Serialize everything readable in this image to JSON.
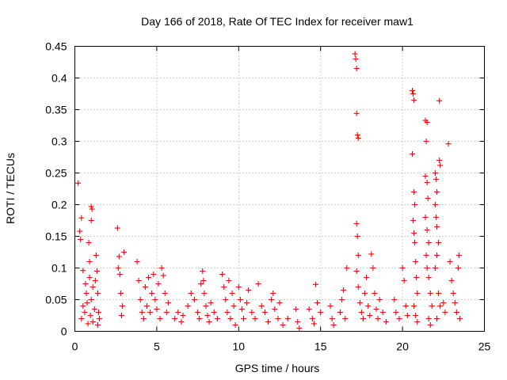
{
  "chart_data": {
    "type": "scatter",
    "title": "Day 166 of 2018, Rate Of TEC Index for receiver maw1",
    "xlabel": "GPS time / hours",
    "ylabel": "ROTI / TECUs",
    "xlim": [
      0,
      25
    ],
    "ylim": [
      0,
      0.45
    ],
    "xticks": [
      0,
      5,
      10,
      15,
      20,
      25
    ],
    "xtick_labels": [
      "0",
      "5",
      "10",
      "15",
      "20",
      "25"
    ],
    "yticks": [
      0,
      0.05,
      0.1,
      0.15,
      0.2,
      0.25,
      0.3,
      0.35,
      0.4,
      0.45
    ],
    "ytick_labels": [
      "0",
      "0.05",
      "0.1",
      "0.15",
      "0.2",
      "0.25",
      "0.3",
      "0.35",
      "0.4",
      "0.45"
    ],
    "grid": true,
    "marker": "+",
    "color": "#ff0000",
    "series": [
      {
        "name": "ROTI",
        "points": [
          [
            0.2,
            0.234
          ],
          [
            0.3,
            0.158
          ],
          [
            0.35,
            0.145
          ],
          [
            0.4,
            0.179
          ],
          [
            0.5,
            0.096
          ],
          [
            0.5,
            0.04
          ],
          [
            0.4,
            0.02
          ],
          [
            0.6,
            0.03
          ],
          [
            0.7,
            0.06
          ],
          [
            0.8,
            0.012
          ],
          [
            0.9,
            0.11
          ],
          [
            0.9,
            0.085
          ],
          [
            1.0,
            0.197
          ],
          [
            1.0,
            0.175
          ],
          [
            1.05,
            0.193
          ],
          [
            1.1,
            0.07
          ],
          [
            1.0,
            0.05
          ],
          [
            1.2,
            0.035
          ],
          [
            0.95,
            0.025
          ],
          [
            1.1,
            0.015
          ],
          [
            1.3,
            0.12
          ],
          [
            1.35,
            0.095
          ],
          [
            1.4,
            0.06
          ],
          [
            1.45,
            0.03
          ],
          [
            1.5,
            0.02
          ],
          [
            1.4,
            0.01
          ],
          [
            0.75,
            0.045
          ],
          [
            0.65,
            0.075
          ],
          [
            1.25,
            0.08
          ],
          [
            0.85,
            0.14
          ],
          [
            2.6,
            0.163
          ],
          [
            2.7,
            0.118
          ],
          [
            2.75,
            0.09
          ],
          [
            2.8,
            0.06
          ],
          [
            2.9,
            0.04
          ],
          [
            3.0,
            0.125
          ],
          [
            2.85,
            0.025
          ],
          [
            2.65,
            0.1
          ],
          [
            3.8,
            0.11
          ],
          [
            3.9,
            0.08
          ],
          [
            4.0,
            0.05
          ],
          [
            4.1,
            0.03
          ],
          [
            4.2,
            0.02
          ],
          [
            4.3,
            0.07
          ],
          [
            4.4,
            0.04
          ],
          [
            4.5,
            0.085
          ],
          [
            4.6,
            0.03
          ],
          [
            4.7,
            0.06
          ],
          [
            4.8,
            0.09
          ],
          [
            4.9,
            0.05
          ],
          [
            5.0,
            0.035
          ],
          [
            5.1,
            0.075
          ],
          [
            5.2,
            0.02
          ],
          [
            5.3,
            0.1
          ],
          [
            5.4,
            0.088
          ],
          [
            5.5,
            0.06
          ],
          [
            5.6,
            0.03
          ],
          [
            5.7,
            0.045
          ],
          [
            6.1,
            0.02
          ],
          [
            6.3,
            0.03
          ],
          [
            6.5,
            0.015
          ],
          [
            6.6,
            0.025
          ],
          [
            6.9,
            0.04
          ],
          [
            7.1,
            0.06
          ],
          [
            7.3,
            0.05
          ],
          [
            7.5,
            0.03
          ],
          [
            7.6,
            0.02
          ],
          [
            7.7,
            0.075
          ],
          [
            7.8,
            0.095
          ],
          [
            7.85,
            0.08
          ],
          [
            7.9,
            0.06
          ],
          [
            8.0,
            0.04
          ],
          [
            8.1,
            0.025
          ],
          [
            8.2,
            0.015
          ],
          [
            8.3,
            0.045
          ],
          [
            8.5,
            0.03
          ],
          [
            8.7,
            0.02
          ],
          [
            9.0,
            0.09
          ],
          [
            9.1,
            0.07
          ],
          [
            9.2,
            0.05
          ],
          [
            9.3,
            0.03
          ],
          [
            9.4,
            0.08
          ],
          [
            9.5,
            0.02
          ],
          [
            9.6,
            0.06
          ],
          [
            9.7,
            0.04
          ],
          [
            9.8,
            0.01
          ],
          [
            10.0,
            0.07
          ],
          [
            10.1,
            0.05
          ],
          [
            10.2,
            0.035
          ],
          [
            10.3,
            0.02
          ],
          [
            10.5,
            0.045
          ],
          [
            10.6,
            0.065
          ],
          [
            10.8,
            0.03
          ],
          [
            11.0,
            0.02
          ],
          [
            11.2,
            0.075
          ],
          [
            11.4,
            0.04
          ],
          [
            11.6,
            0.03
          ],
          [
            11.8,
            0.015
          ],
          [
            12.0,
            0.05
          ],
          [
            12.1,
            0.06
          ],
          [
            12.2,
            0.035
          ],
          [
            12.4,
            0.02
          ],
          [
            12.5,
            0.045
          ],
          [
            12.7,
            0.01
          ],
          [
            13.0,
            0.02
          ],
          [
            13.5,
            0.035
          ],
          [
            13.6,
            0.015
          ],
          [
            13.7,
            0.005
          ],
          [
            14.3,
            0.035
          ],
          [
            14.5,
            0.02
          ],
          [
            14.6,
            0.012
          ],
          [
            14.7,
            0.074
          ],
          [
            14.8,
            0.045
          ],
          [
            15.0,
            0.03
          ],
          [
            15.6,
            0.04
          ],
          [
            15.7,
            0.02
          ],
          [
            15.8,
            0.01
          ],
          [
            16.2,
            0.03
          ],
          [
            16.3,
            0.05
          ],
          [
            16.4,
            0.065
          ],
          [
            16.5,
            0.02
          ],
          [
            16.6,
            0.1
          ],
          [
            17.1,
            0.438
          ],
          [
            17.15,
            0.43
          ],
          [
            17.2,
            0.415
          ],
          [
            17.2,
            0.344
          ],
          [
            17.25,
            0.31
          ],
          [
            17.3,
            0.305
          ],
          [
            17.2,
            0.17
          ],
          [
            17.25,
            0.15
          ],
          [
            17.3,
            0.12
          ],
          [
            17.2,
            0.095
          ],
          [
            17.3,
            0.07
          ],
          [
            17.4,
            0.045
          ],
          [
            17.5,
            0.03
          ],
          [
            17.6,
            0.02
          ],
          [
            17.7,
            0.06
          ],
          [
            17.8,
            0.085
          ],
          [
            17.9,
            0.04
          ],
          [
            18.0,
            0.025
          ],
          [
            18.1,
            0.122
          ],
          [
            18.2,
            0.1
          ],
          [
            18.3,
            0.06
          ],
          [
            18.4,
            0.035
          ],
          [
            18.5,
            0.02
          ],
          [
            18.6,
            0.05
          ],
          [
            18.8,
            0.03
          ],
          [
            19.0,
            0.015
          ],
          [
            19.5,
            0.05
          ],
          [
            19.6,
            0.03
          ],
          [
            19.8,
            0.02
          ],
          [
            20.0,
            0.1
          ],
          [
            20.1,
            0.08
          ],
          [
            20.2,
            0.04
          ],
          [
            20.3,
            0.025
          ],
          [
            20.6,
            0.38
          ],
          [
            20.65,
            0.375
          ],
          [
            20.7,
            0.365
          ],
          [
            20.6,
            0.28
          ],
          [
            20.7,
            0.22
          ],
          [
            20.75,
            0.2
          ],
          [
            20.65,
            0.175
          ],
          [
            20.7,
            0.155
          ],
          [
            20.75,
            0.14
          ],
          [
            20.8,
            0.11
          ],
          [
            20.85,
            0.085
          ],
          [
            20.9,
            0.06
          ],
          [
            20.7,
            0.04
          ],
          [
            20.8,
            0.025
          ],
          [
            20.9,
            0.015
          ],
          [
            21.4,
            0.333
          ],
          [
            21.5,
            0.33
          ],
          [
            21.45,
            0.3
          ],
          [
            21.4,
            0.245
          ],
          [
            21.5,
            0.235
          ],
          [
            21.55,
            0.21
          ],
          [
            21.4,
            0.18
          ],
          [
            21.5,
            0.16
          ],
          [
            21.6,
            0.14
          ],
          [
            21.45,
            0.12
          ],
          [
            21.5,
            0.1
          ],
          [
            21.6,
            0.085
          ],
          [
            21.7,
            0.06
          ],
          [
            21.8,
            0.04
          ],
          [
            21.6,
            0.02
          ],
          [
            21.7,
            0.01
          ],
          [
            22.0,
            0.25
          ],
          [
            22.05,
            0.24
          ],
          [
            22.1,
            0.22
          ],
          [
            22.0,
            0.2
          ],
          [
            22.05,
            0.18
          ],
          [
            22.1,
            0.165
          ],
          [
            22.2,
            0.14
          ],
          [
            22.1,
            0.12
          ],
          [
            22.0,
            0.1
          ],
          [
            22.2,
            0.06
          ],
          [
            22.3,
            0.04
          ],
          [
            22.1,
            0.02
          ],
          [
            22.25,
            0.27
          ],
          [
            22.3,
            0.262
          ],
          [
            22.25,
            0.364
          ],
          [
            22.5,
            0.045
          ],
          [
            22.6,
            0.03
          ],
          [
            22.8,
            0.296
          ],
          [
            22.9,
            0.11
          ],
          [
            23.0,
            0.08
          ],
          [
            23.1,
            0.06
          ],
          [
            23.2,
            0.045
          ],
          [
            23.3,
            0.03
          ],
          [
            23.4,
            0.1
          ],
          [
            23.45,
            0.12
          ],
          [
            23.5,
            0.02
          ]
        ]
      }
    ]
  }
}
